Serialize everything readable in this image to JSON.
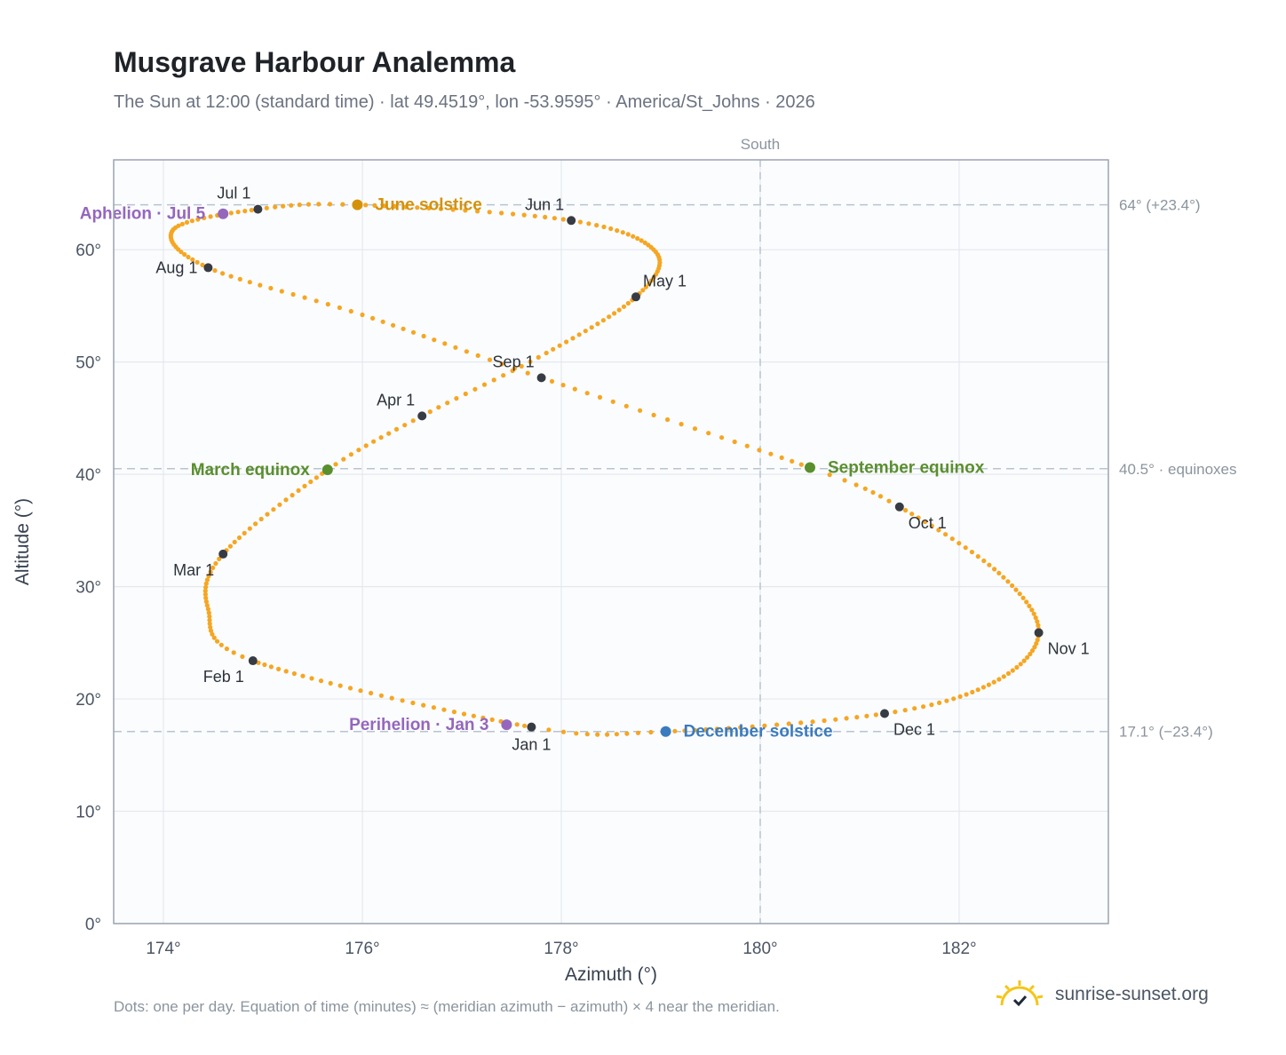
{
  "header": {
    "title": "Musgrave Harbour Analemma",
    "subtitle": "The Sun at 12:00 (standard time) · lat 49.4519°, lon -53.9595° · America/St_Johns · 2026"
  },
  "footer": {
    "note": "Dots: one per day. Equation of time (minutes) ≈ (meridian azimuth − azimuth) × 4 near the meridian.",
    "brand": "sunrise-sunset.org"
  },
  "colors": {
    "path": "#f5a623",
    "month_marker": "#373c44",
    "june_solstice": "#d4920b",
    "december_solstice": "#3a7bbf",
    "equinox": "#5a8f2e",
    "apsis": "#9467bd",
    "reference_line": "#b8c4d2",
    "plot_background": "#fbfcfd"
  },
  "chart_data": {
    "type": "scatter",
    "xlabel": "Azimuth (°)",
    "ylabel": "Altitude (°)",
    "xlim": [
      173.5,
      183.5
    ],
    "ylim": [
      0,
      68
    ],
    "x_ticks": [
      174,
      176,
      178,
      180,
      182
    ],
    "x_tick_labels": [
      "174°",
      "176°",
      "178°",
      "180°",
      "182°"
    ],
    "y_ticks": [
      0,
      10,
      20,
      30,
      40,
      50,
      60
    ],
    "y_tick_labels": [
      "0°",
      "10°",
      "20°",
      "30°",
      "40°",
      "50°",
      "60°"
    ],
    "grid": true,
    "meridian": {
      "azimuth": 180,
      "label": "South"
    },
    "reference_lines": [
      {
        "altitude": 64.0,
        "label": "64° (+23.4°)"
      },
      {
        "altitude": 40.5,
        "label": "40.5° · equinoxes"
      },
      {
        "altitude": 17.1,
        "label": "17.1° (−23.4°)"
      }
    ],
    "path_anchors": [
      {
        "day": 1,
        "azimuth": 177.7,
        "altitude": 17.5
      },
      {
        "day": 32,
        "azimuth": 174.9,
        "altitude": 23.4
      },
      {
        "day": 46,
        "azimuth": 174.45,
        "altitude": 28.0
      },
      {
        "day": 60,
        "azimuth": 174.6,
        "altitude": 32.9
      },
      {
        "day": 79,
        "azimuth": 175.65,
        "altitude": 40.4
      },
      {
        "day": 91,
        "azimuth": 176.6,
        "altitude": 45.2
      },
      {
        "day": 105,
        "azimuth": 177.85,
        "altitude": 50.8
      },
      {
        "day": 121,
        "azimuth": 178.75,
        "altitude": 55.8
      },
      {
        "day": 136,
        "azimuth": 178.95,
        "altitude": 59.8
      },
      {
        "day": 152,
        "azimuth": 178.1,
        "altitude": 62.6
      },
      {
        "day": 172,
        "azimuth": 175.95,
        "altitude": 64.0
      },
      {
        "day": 182,
        "azimuth": 174.95,
        "altitude": 63.6
      },
      {
        "day": 197,
        "azimuth": 174.1,
        "altitude": 61.8
      },
      {
        "day": 213,
        "azimuth": 174.45,
        "altitude": 58.4
      },
      {
        "day": 228,
        "azimuth": 176.0,
        "altitude": 54.2
      },
      {
        "day": 244,
        "azimuth": 177.8,
        "altitude": 48.6
      },
      {
        "day": 266,
        "azimuth": 180.5,
        "altitude": 40.6
      },
      {
        "day": 274,
        "azimuth": 181.4,
        "altitude": 37.1
      },
      {
        "day": 290,
        "azimuth": 182.4,
        "altitude": 31.2
      },
      {
        "day": 305,
        "azimuth": 182.8,
        "altitude": 25.9
      },
      {
        "day": 320,
        "azimuth": 182.35,
        "altitude": 21.5
      },
      {
        "day": 335,
        "azimuth": 181.25,
        "altitude": 18.7
      },
      {
        "day": 355,
        "azimuth": 179.05,
        "altitude": 17.1
      },
      {
        "day": 366,
        "azimuth": 177.7,
        "altitude": 17.5
      }
    ],
    "month_markers": [
      {
        "label": "Jan 1",
        "azimuth": 177.7,
        "altitude": 17.5,
        "label_pos": "below"
      },
      {
        "label": "Feb 1",
        "azimuth": 174.9,
        "altitude": 23.4,
        "label_pos": "below-left"
      },
      {
        "label": "Mar 1",
        "azimuth": 174.6,
        "altitude": 32.9,
        "label_pos": "below-left"
      },
      {
        "label": "Apr 1",
        "azimuth": 176.6,
        "altitude": 45.2,
        "label_pos": "above-left"
      },
      {
        "label": "May 1",
        "azimuth": 178.75,
        "altitude": 55.8,
        "label_pos": "above-right"
      },
      {
        "label": "Jun 1",
        "azimuth": 178.1,
        "altitude": 62.6,
        "label_pos": "above-left"
      },
      {
        "label": "Jul 1",
        "azimuth": 174.95,
        "altitude": 63.6,
        "label_pos": "above-left"
      },
      {
        "label": "Aug 1",
        "azimuth": 174.45,
        "altitude": 58.4,
        "label_pos": "left"
      },
      {
        "label": "Sep 1",
        "azimuth": 177.8,
        "altitude": 48.6,
        "label_pos": "above-left"
      },
      {
        "label": "Oct 1",
        "azimuth": 181.4,
        "altitude": 37.1,
        "label_pos": "below-right"
      },
      {
        "label": "Nov 1",
        "azimuth": 182.8,
        "altitude": 25.9,
        "label_pos": "below-right"
      },
      {
        "label": "Dec 1",
        "azimuth": 181.25,
        "altitude": 18.7,
        "label_pos": "below-right"
      }
    ],
    "events": [
      {
        "label": "June solstice",
        "azimuth": 175.95,
        "altitude": 64.0,
        "color_key": "june_solstice",
        "label_pos": "right"
      },
      {
        "label": "December solstice",
        "azimuth": 179.05,
        "altitude": 17.1,
        "color_key": "december_solstice",
        "label_pos": "right"
      },
      {
        "label": "March equinox",
        "azimuth": 175.65,
        "altitude": 40.4,
        "color_key": "equinox",
        "label_pos": "left"
      },
      {
        "label": "September equinox",
        "azimuth": 180.5,
        "altitude": 40.6,
        "color_key": "equinox",
        "label_pos": "right"
      },
      {
        "label": "Aphelion · Jul 5",
        "azimuth": 174.6,
        "altitude": 63.2,
        "color_key": "apsis",
        "label_pos": "left"
      },
      {
        "label": "Perihelion · Jan 3",
        "azimuth": 177.45,
        "altitude": 17.7,
        "color_key": "apsis",
        "label_pos": "left"
      }
    ]
  }
}
